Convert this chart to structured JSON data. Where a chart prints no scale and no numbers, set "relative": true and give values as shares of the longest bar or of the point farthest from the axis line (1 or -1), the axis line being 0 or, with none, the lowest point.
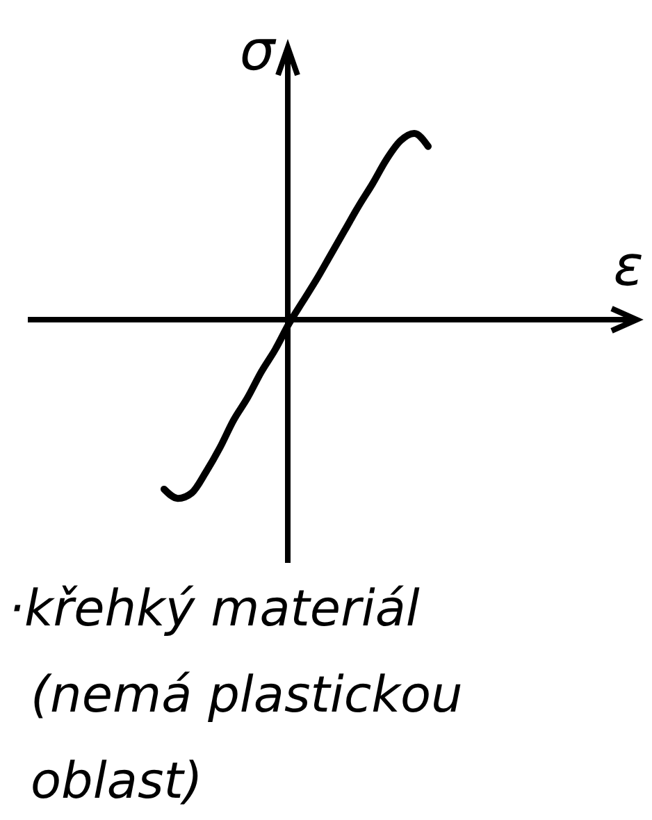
{
  "chart_data": {
    "type": "line",
    "relative": true,
    "xlabel": "ε",
    "ylabel": "σ",
    "color": "#000000",
    "categories": [
      null,
      null,
      null,
      null,
      null,
      null,
      null,
      null,
      null,
      null,
      null,
      null,
      null,
      null,
      null,
      null,
      null,
      null,
      null,
      null,
      null,
      null,
      null,
      null,
      null,
      null,
      null,
      null,
      null,
      null,
      null,
      null,
      null,
      null,
      null,
      null,
      null,
      null,
      null,
      null,
      null,
      null,
      null,
      null
    ],
    "values": [
      null,
      null,
      null,
      null,
      null,
      null,
      null,
      null,
      null,
      null,
      -0.91,
      -0.96,
      -0.93,
      -0.82,
      -0.69,
      -0.54,
      -0.42,
      -0.28,
      -0.16,
      -0.02,
      0.1,
      0.22,
      0.35,
      0.48,
      0.61,
      0.73,
      0.86,
      0.96,
      1,
      0.93,
      null,
      null,
      null,
      null,
      null,
      null,
      null,
      null,
      null,
      null,
      null,
      null,
      null,
      null
    ],
    "annotations": [
      "·křehký materiál (nemá plastickou oblast)"
    ]
  }
}
